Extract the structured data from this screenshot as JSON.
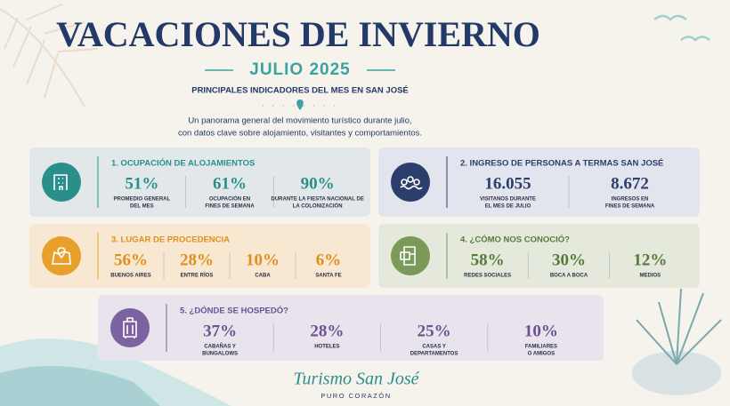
{
  "header": {
    "title": "VACACIONES DE INVIERNO",
    "subtitle": "JULIO 2025",
    "tagline": "PRINCIPALES INDICADORES DEL MES EN SAN JOSÉ",
    "description": [
      "Un panorama general del movimiento turístico durante julio,",
      "con datos clave sobre alojamiento, visitantes y comportamientos."
    ]
  },
  "cards": [
    {
      "title": "1. OCUPACIÓN DE ALOJAMIENTOS",
      "stats": [
        {
          "value": "51%",
          "label": [
            "PROMEDIO GENERAL",
            "DEL MES"
          ]
        },
        {
          "value": "61%",
          "label": [
            "OCUPACIÓN EN",
            "FINES DE SEMANA"
          ]
        },
        {
          "value": "90%",
          "label": [
            "DURANTE LA FIESTA NACIONAL DE",
            "LA COLONIZACIÓN"
          ]
        }
      ]
    },
    {
      "title": "2. INGRESO DE PERSONAS A TERMAS SAN JOSÉ",
      "stats": [
        {
          "value": "16.055",
          "label": [
            "VISITANOS DURANTE",
            "EL MES DE JULIO"
          ]
        },
        {
          "value": "8.672",
          "label": [
            "INGRESOS EN",
            "FINES DE SEMANA"
          ]
        }
      ]
    },
    {
      "title": "3. LUGAR DE PROCEDENCIA",
      "stats": [
        {
          "value": "56%",
          "label": [
            "BUENOS AIRES"
          ]
        },
        {
          "value": "28%",
          "label": [
            "ENTRE RÍOS"
          ]
        },
        {
          "value": "10%",
          "label": [
            "CABA"
          ]
        },
        {
          "value": "6%",
          "label": [
            "SANTA FE"
          ]
        }
      ]
    },
    {
      "title": "4. ¿CÓMO NOS CONOCIÓ?",
      "stats": [
        {
          "value": "58%",
          "label": [
            "REDES SOCIALES"
          ]
        },
        {
          "value": "30%",
          "label": [
            "BOCA A BOCA"
          ]
        },
        {
          "value": "12%",
          "label": [
            "MEDIOS"
          ]
        }
      ]
    },
    {
      "title": "5. ¿DÓNDE SE HOSPEDÓ?",
      "stats": [
        {
          "value": "37%",
          "label": [
            "CABAÑAS Y",
            "BUNGALOWS"
          ]
        },
        {
          "value": "28%",
          "label": [
            "HOTELES"
          ]
        },
        {
          "value": "25%",
          "label": [
            "CASAS Y",
            "DEPARTAMENTOS"
          ]
        },
        {
          "value": "10%",
          "label": [
            "FAMILIARES",
            "O AMIGOS"
          ]
        }
      ]
    }
  ],
  "footer": {
    "brand": "Turismo San José",
    "slogan": "PURO CORAZÓN"
  }
}
